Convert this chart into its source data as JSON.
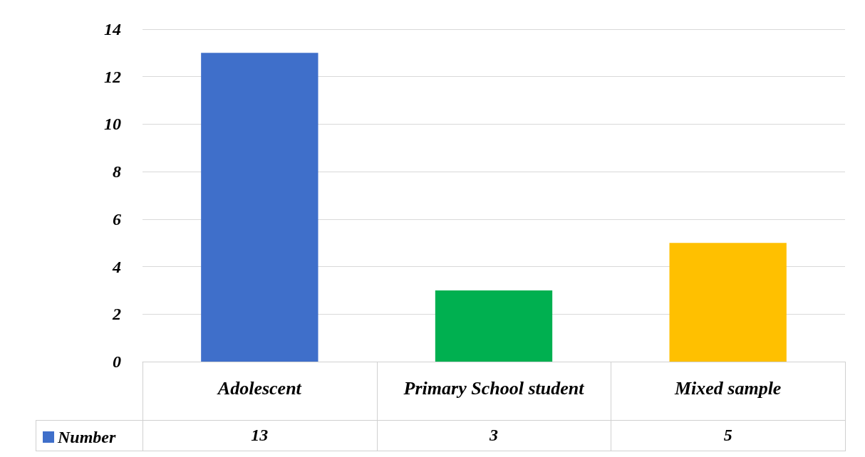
{
  "chart_data": {
    "type": "bar",
    "categories": [
      "Adolescent",
      "Primary School student",
      "Mixed sample"
    ],
    "series": [
      {
        "name": "Number",
        "values": [
          13,
          3,
          5
        ],
        "colors": [
          "#3f6fca",
          "#00b050",
          "#ffc000"
        ]
      }
    ],
    "ylim": [
      0,
      14
    ],
    "yticks": [
      0,
      2,
      4,
      6,
      8,
      10,
      12,
      14
    ],
    "grid": "y",
    "legend": "bottom left",
    "data_labels": true
  }
}
